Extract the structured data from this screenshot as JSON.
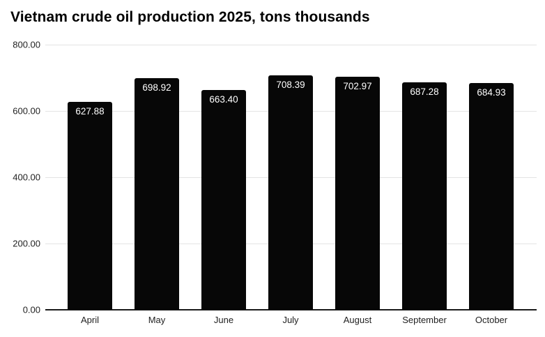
{
  "title": "Vietnam crude oil production 2025, tons thousands",
  "colors": {
    "bar_fill": "#070707",
    "bar_value_text": "#ffffff",
    "gridline": "#e4e4e4",
    "axis_line": "#1a1a1a",
    "tick_text": "#1f1f1f",
    "background": "#ffffff"
  },
  "chart_data": {
    "type": "bar",
    "title": "Vietnam crude oil production 2025, tons thousands",
    "categories": [
      "April",
      "May",
      "June",
      "July",
      "August",
      "September",
      "October"
    ],
    "values": [
      627.88,
      698.92,
      663.4,
      708.39,
      702.97,
      687.28,
      684.93
    ],
    "value_labels": [
      "627.88",
      "698.92",
      "663.40",
      "708.39",
      "702.97",
      "687.28",
      "684.93"
    ],
    "xlabel": "",
    "ylabel": "",
    "ylim": [
      0,
      800
    ],
    "yticks": [
      "800.00",
      "600.00",
      "400.00",
      "200.00",
      "0.00"
    ],
    "grid": true,
    "legend": false,
    "bar_color": "#070707",
    "value_label_position": "inside-top",
    "value_label_color": "#ffffff"
  }
}
